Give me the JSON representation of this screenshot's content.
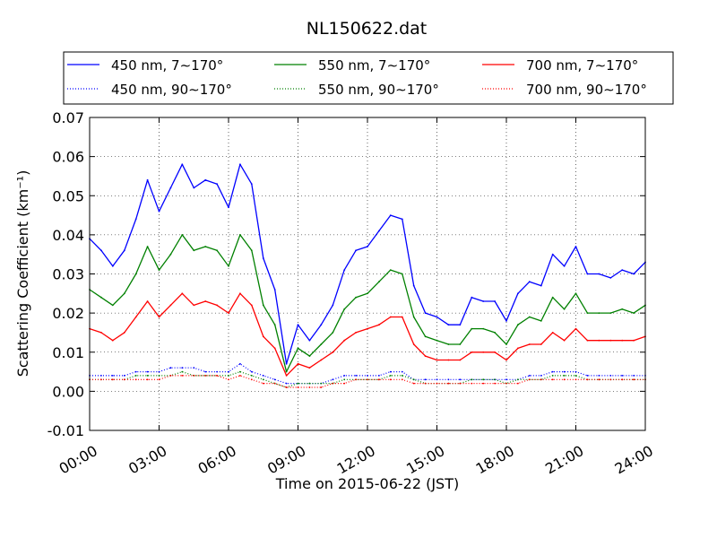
{
  "chart_data": {
    "type": "line",
    "title": "NL150622.dat",
    "xlabel": "Time on 2015-06-22 (JST)",
    "ylabel": "Scattering Coefficient (km⁻¹)",
    "xlim": [
      "00:00",
      "24:00"
    ],
    "ylim": [
      -0.01,
      0.07
    ],
    "grid": true,
    "legend_position": "top",
    "x_ticks": [
      "00:00",
      "03:00",
      "06:00",
      "09:00",
      "12:00",
      "15:00",
      "18:00",
      "21:00",
      "24:00"
    ],
    "y_ticks": [
      "-0.01",
      "0.00",
      "0.01",
      "0.02",
      "0.03",
      "0.04",
      "0.05",
      "0.06",
      "0.07"
    ],
    "x": [
      "00:00",
      "00:30",
      "01:00",
      "01:30",
      "02:00",
      "02:30",
      "03:00",
      "03:30",
      "04:00",
      "04:30",
      "05:00",
      "05:30",
      "06:00",
      "06:30",
      "07:00",
      "07:30",
      "08:00",
      "08:30",
      "09:00",
      "09:30",
      "10:00",
      "10:30",
      "11:00",
      "11:30",
      "12:00",
      "12:30",
      "13:00",
      "13:30",
      "14:00",
      "14:30",
      "15:00",
      "15:30",
      "16:00",
      "16:30",
      "17:00",
      "17:30",
      "18:00",
      "18:30",
      "19:00",
      "19:30",
      "20:00",
      "20:30",
      "21:00",
      "21:30",
      "22:00",
      "22:30",
      "23:00",
      "23:30",
      "24:00"
    ],
    "series": [
      {
        "name": "450 nm, 7∼170°",
        "color": "#0000ff",
        "style": "solid",
        "values": [
          0.039,
          0.036,
          0.032,
          0.036,
          0.044,
          0.054,
          0.046,
          0.052,
          0.058,
          0.052,
          0.054,
          0.053,
          0.047,
          0.058,
          0.053,
          0.034,
          0.026,
          0.007,
          0.017,
          0.013,
          0.017,
          0.022,
          0.031,
          0.036,
          0.037,
          0.041,
          0.045,
          0.044,
          0.027,
          0.02,
          0.019,
          0.017,
          0.017,
          0.024,
          0.023,
          0.023,
          0.018,
          0.025,
          0.028,
          0.027,
          0.035,
          0.032,
          0.037,
          0.03,
          0.03,
          0.029,
          0.031,
          0.03,
          0.033
        ]
      },
      {
        "name": "550 nm, 7∼170°",
        "color": "#008000",
        "style": "solid",
        "values": [
          0.026,
          0.024,
          0.022,
          0.025,
          0.03,
          0.037,
          0.031,
          0.035,
          0.04,
          0.036,
          0.037,
          0.036,
          0.032,
          0.04,
          0.036,
          0.022,
          0.017,
          0.005,
          0.011,
          0.009,
          0.012,
          0.015,
          0.021,
          0.024,
          0.025,
          0.028,
          0.031,
          0.03,
          0.019,
          0.014,
          0.013,
          0.012,
          0.012,
          0.016,
          0.016,
          0.015,
          0.012,
          0.017,
          0.019,
          0.018,
          0.024,
          0.021,
          0.025,
          0.02,
          0.02,
          0.02,
          0.021,
          0.02,
          0.022
        ]
      },
      {
        "name": "700 nm, 7∼170°",
        "color": "#ff0000",
        "style": "solid",
        "values": [
          0.016,
          0.015,
          0.013,
          0.015,
          0.019,
          0.023,
          0.019,
          0.022,
          0.025,
          0.022,
          0.023,
          0.022,
          0.02,
          0.025,
          0.022,
          0.014,
          0.011,
          0.004,
          0.007,
          0.006,
          0.008,
          0.01,
          0.013,
          0.015,
          0.016,
          0.017,
          0.019,
          0.019,
          0.012,
          0.009,
          0.008,
          0.008,
          0.008,
          0.01,
          0.01,
          0.01,
          0.008,
          0.011,
          0.012,
          0.012,
          0.015,
          0.013,
          0.016,
          0.013,
          0.013,
          0.013,
          0.013,
          0.013,
          0.014
        ]
      },
      {
        "name": "450 nm, 90∼170°",
        "color": "#0000ff",
        "style": "dotted",
        "values": [
          0.004,
          0.004,
          0.004,
          0.004,
          0.005,
          0.005,
          0.005,
          0.006,
          0.006,
          0.006,
          0.005,
          0.005,
          0.005,
          0.007,
          0.005,
          0.004,
          0.003,
          0.002,
          0.002,
          0.002,
          0.002,
          0.003,
          0.004,
          0.004,
          0.004,
          0.004,
          0.005,
          0.005,
          0.003,
          0.003,
          0.003,
          0.003,
          0.003,
          0.003,
          0.003,
          0.003,
          0.003,
          0.003,
          0.004,
          0.004,
          0.005,
          0.005,
          0.005,
          0.004,
          0.004,
          0.004,
          0.004,
          0.004,
          0.004
        ]
      },
      {
        "name": "550 nm, 90∼170°",
        "color": "#008000",
        "style": "dotted",
        "values": [
          0.003,
          0.003,
          0.003,
          0.003,
          0.004,
          0.004,
          0.004,
          0.004,
          0.005,
          0.004,
          0.004,
          0.004,
          0.004,
          0.005,
          0.004,
          0.003,
          0.002,
          0.001,
          0.002,
          0.002,
          0.002,
          0.002,
          0.003,
          0.003,
          0.003,
          0.003,
          0.004,
          0.004,
          0.003,
          0.002,
          0.002,
          0.002,
          0.002,
          0.003,
          0.003,
          0.003,
          0.002,
          0.003,
          0.003,
          0.003,
          0.004,
          0.004,
          0.004,
          0.003,
          0.003,
          0.003,
          0.003,
          0.003,
          0.003
        ]
      },
      {
        "name": "700 nm, 90∼170°",
        "color": "#ff0000",
        "style": "dotted",
        "values": [
          0.003,
          0.003,
          0.003,
          0.003,
          0.003,
          0.003,
          0.003,
          0.004,
          0.004,
          0.004,
          0.004,
          0.004,
          0.003,
          0.004,
          0.003,
          0.002,
          0.002,
          0.001,
          0.001,
          0.001,
          0.001,
          0.002,
          0.002,
          0.003,
          0.003,
          0.003,
          0.003,
          0.003,
          0.002,
          0.002,
          0.002,
          0.002,
          0.002,
          0.002,
          0.002,
          0.002,
          0.002,
          0.002,
          0.003,
          0.003,
          0.003,
          0.003,
          0.003,
          0.003,
          0.003,
          0.003,
          0.003,
          0.003,
          0.003
        ]
      }
    ]
  }
}
